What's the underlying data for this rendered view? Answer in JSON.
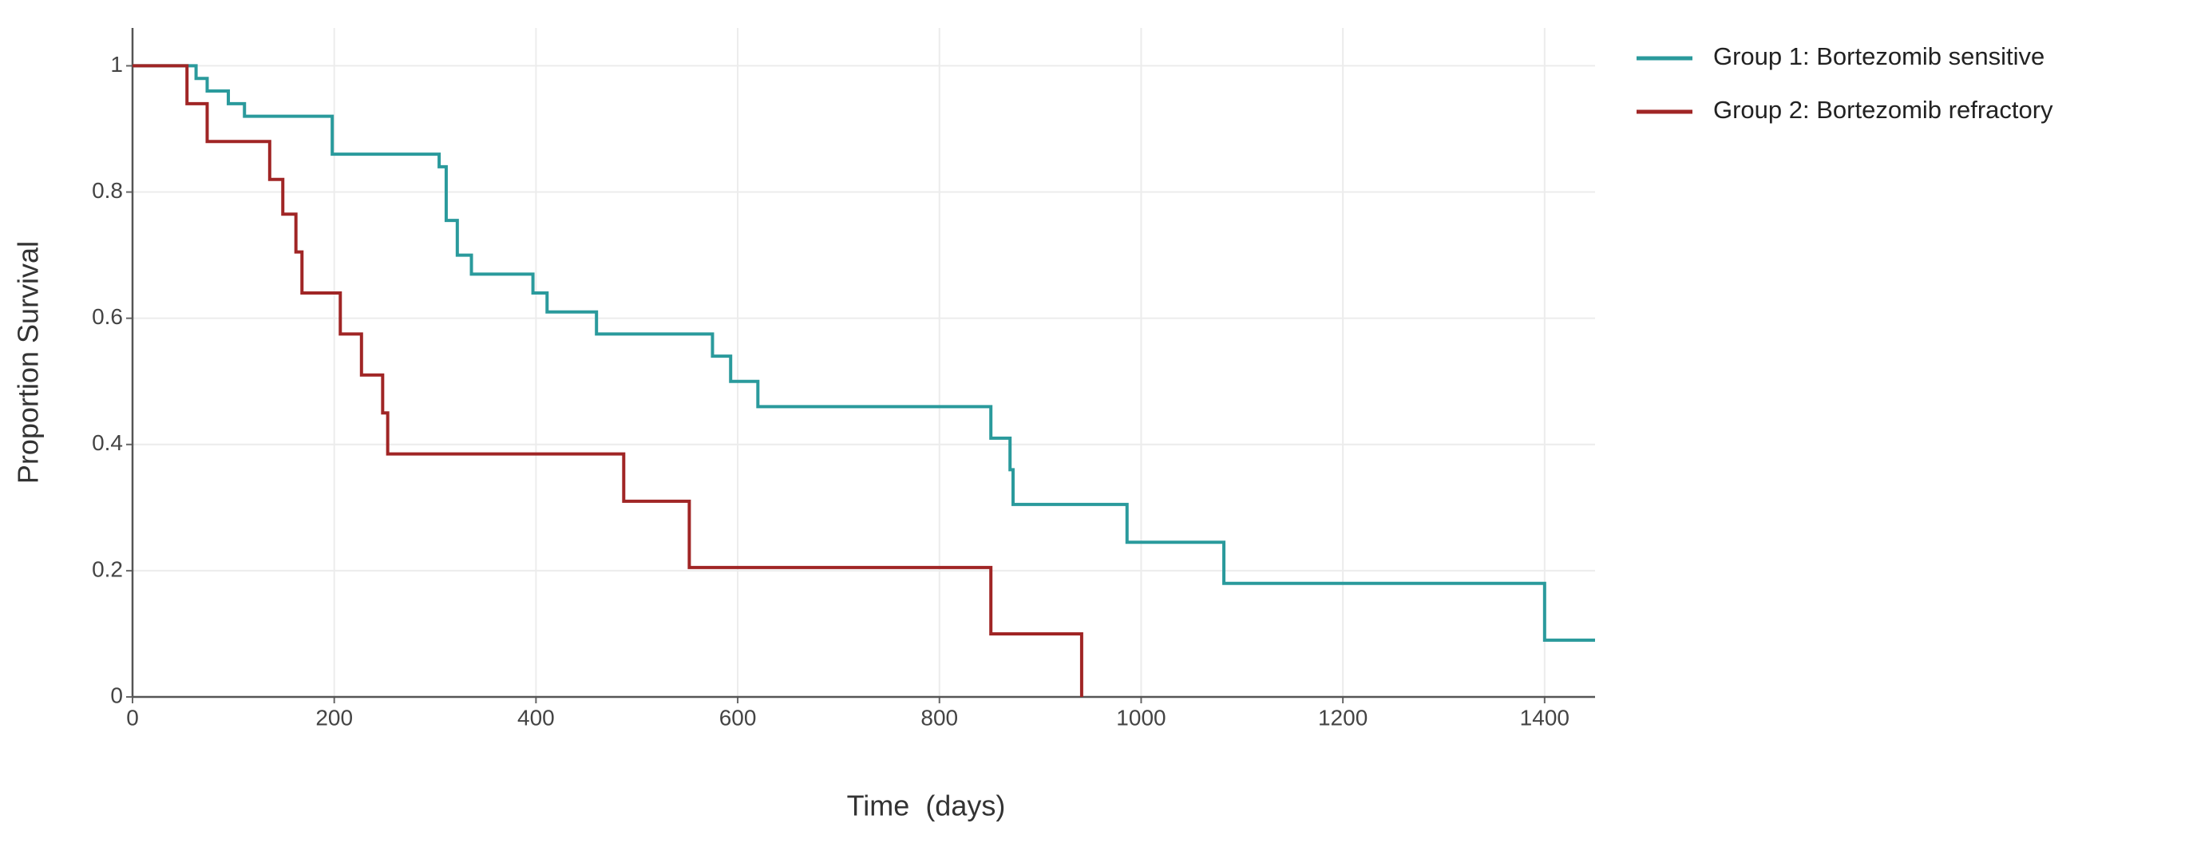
{
  "chart_data": {
    "type": "step",
    "x_label": "Time  (days)",
    "y_label": "Proportion Survival",
    "xlim": [
      0,
      1450
    ],
    "ylim": [
      0,
      1.06
    ],
    "xticks": [
      0,
      200,
      400,
      600,
      800,
      1000,
      1200,
      1400
    ],
    "yticks": [
      0,
      0.2,
      0.4,
      0.6,
      0.8,
      1
    ],
    "grid": true,
    "legend": "outside-top-right",
    "series": [
      {
        "name": "Group 1: Bortezomib sensitive",
        "color": "#2a9a9c",
        "x": [
          0,
          63,
          74,
          95,
          111,
          198,
          304,
          311,
          322,
          336,
          397,
          411,
          460,
          575,
          593,
          620,
          851,
          870,
          873,
          986,
          1082,
          1400,
          1450
        ],
        "values": [
          1,
          0.98,
          0.96,
          0.94,
          0.92,
          0.86,
          0.84,
          0.755,
          0.7,
          0.67,
          0.64,
          0.61,
          0.575,
          0.54,
          0.5,
          0.46,
          0.41,
          0.36,
          0.305,
          0.245,
          0.18,
          0.09,
          0.09
        ]
      },
      {
        "name": "Group 2: Bortezomib refractory",
        "color": "#a02525",
        "x": [
          0,
          54,
          74,
          136,
          149,
          162,
          168,
          206,
          227,
          248,
          253,
          487,
          552,
          851,
          941
        ],
        "values": [
          1,
          0.94,
          0.88,
          0.82,
          0.765,
          0.705,
          0.64,
          0.575,
          0.51,
          0.45,
          0.385,
          0.31,
          0.205,
          0.1,
          0
        ]
      }
    ]
  }
}
